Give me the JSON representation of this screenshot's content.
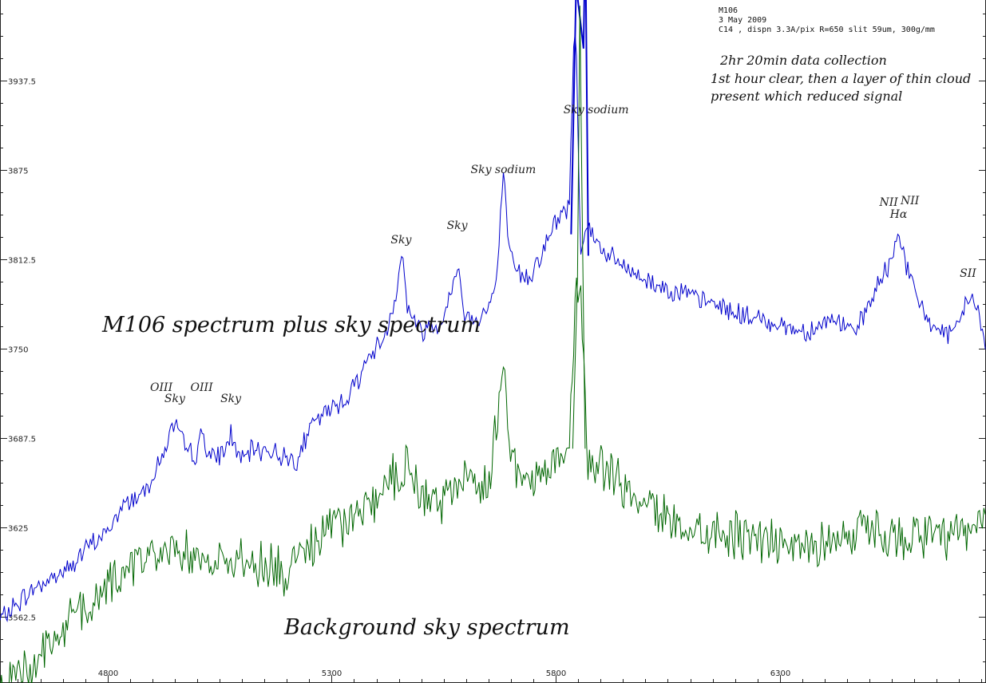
{
  "header": {
    "object": "M106",
    "date": "3 May 2009",
    "setup": "C14 , dispn 3.3A/pix  R=650 slit 59um, 300g/mm"
  },
  "notes": [
    "2hr 20min data collection",
    "1st hour clear, then a layer of thin cloud",
    "present which reduced signal"
  ],
  "labels": {
    "upper_series": "M106 spectrum plus sky spectrum",
    "lower_series": "Background sky spectrum"
  },
  "annotations": [
    {
      "text": "OIII",
      "x": 4920
    },
    {
      "text": "Sky",
      "x": 4950
    },
    {
      "text": "OIII",
      "x": 5010
    },
    {
      "text": "Sky",
      "x": 5075
    },
    {
      "text": "Sky",
      "x": 5455
    },
    {
      "text": "Sky",
      "x": 5580
    },
    {
      "text": "Sky sodium",
      "x": 5683
    },
    {
      "text": "Sky sodium",
      "x": 5890
    },
    {
      "text": "NII",
      "x": 6543
    },
    {
      "text": "Hα",
      "x": 6565
    },
    {
      "text": "NII",
      "x": 6590
    },
    {
      "text": "SII",
      "x": 6720
    }
  ],
  "chart_data": {
    "type": "line",
    "x_ticks": [
      "4800",
      "5300",
      "5800",
      "6300"
    ],
    "y_ticks": [
      "3562.5",
      "3625",
      "3687.5",
      "3750",
      "3812.5",
      "3875",
      "3937.5"
    ],
    "xlim": [
      4560,
      6760
    ],
    "ylim": [
      3516,
      3994
    ],
    "grid": false,
    "colors": {
      "upper": "#0000cc",
      "lower": "#006600",
      "axis": "#222222"
    },
    "series": [
      {
        "key": "upper",
        "x": [
          4560,
          4600,
          4640,
          4680,
          4720,
          4760,
          4800,
          4840,
          4880,
          4920,
          4935,
          4950,
          4970,
          5000,
          5010,
          5030,
          5060,
          5075,
          5100,
          5120,
          5150,
          5180,
          5220,
          5260,
          5300,
          5340,
          5380,
          5420,
          5445,
          5455,
          5470,
          5500,
          5540,
          5570,
          5580,
          5595,
          5620,
          5650,
          5670,
          5683,
          5693,
          5710,
          5740,
          5770,
          5800,
          5830,
          5840,
          5845,
          5855,
          5870,
          5880,
          5900,
          5930,
          5960,
          5990,
          6020,
          6050,
          6080,
          6110,
          6140,
          6170,
          6200,
          6230,
          6260,
          6290,
          6320,
          6350,
          6380,
          6410,
          6440,
          6470,
          6500,
          6530,
          6550,
          6565,
          6580,
          6600,
          6630,
          6660,
          6690,
          6720,
          6740,
          6760
        ],
        "y": [
          3560,
          3572,
          3583,
          3590,
          3598,
          3612,
          3622,
          3642,
          3650,
          3672,
          3688,
          3697,
          3682,
          3674,
          3694,
          3672,
          3678,
          3690,
          3670,
          3678,
          3680,
          3676,
          3672,
          3698,
          3708,
          3718,
          3742,
          3760,
          3790,
          3820,
          3778,
          3762,
          3768,
          3790,
          3812,
          3776,
          3770,
          3778,
          3800,
          3880,
          3822,
          3804,
          3800,
          3818,
          3838,
          3850,
          3960,
          3980,
          3820,
          3838,
          3830,
          3820,
          3812,
          3805,
          3800,
          3795,
          3792,
          3790,
          3785,
          3782,
          3780,
          3775,
          3772,
          3770,
          3768,
          3765,
          3762,
          3765,
          3770,
          3768,
          3760,
          3782,
          3800,
          3812,
          3835,
          3810,
          3790,
          3770,
          3762,
          3758,
          3788,
          3778,
          3750
        ]
      },
      {
        "key": "lower",
        "x": [
          4560,
          4600,
          4640,
          4680,
          4720,
          4760,
          4800,
          4840,
          4880,
          4920,
          4950,
          5000,
          5050,
          5100,
          5150,
          5200,
          5250,
          5300,
          5350,
          5400,
          5440,
          5470,
          5500,
          5550,
          5590,
          5620,
          5650,
          5683,
          5700,
          5740,
          5780,
          5830,
          5845,
          5855,
          5870,
          5900,
          5950,
          6000,
          6050,
          6100,
          6150,
          6200,
          6250,
          6300,
          6350,
          6400,
          6450,
          6500,
          6550,
          6600,
          6650,
          6700,
          6760
        ],
        "y": [
          3508,
          3522,
          3532,
          3545,
          3562,
          3570,
          3582,
          3595,
          3602,
          3610,
          3615,
          3602,
          3598,
          3605,
          3598,
          3592,
          3612,
          3622,
          3632,
          3645,
          3660,
          3668,
          3640,
          3645,
          3652,
          3660,
          3650,
          3740,
          3672,
          3660,
          3665,
          3680,
          3790,
          3800,
          3672,
          3670,
          3652,
          3640,
          3630,
          3625,
          3622,
          3620,
          3618,
          3615,
          3610,
          3615,
          3620,
          3622,
          3618,
          3620,
          3615,
          3618,
          3630
        ]
      }
    ]
  }
}
